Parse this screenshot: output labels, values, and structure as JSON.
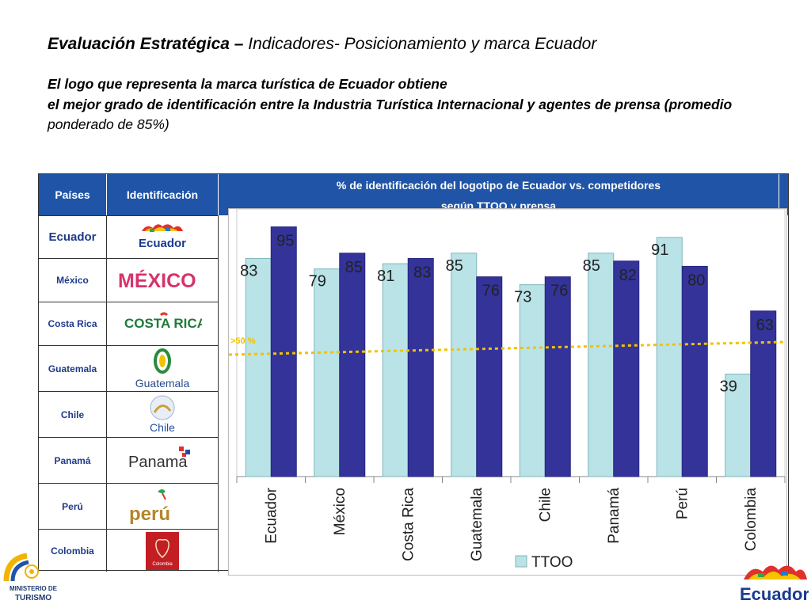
{
  "header": {
    "title_bold": "Evaluación Estratégica –",
    "title_rest": " Indicadores- Posicionamiento y marca Ecuador",
    "line1": "El logo que representa la marca turística de Ecuador obtiene",
    "line2": "el mejor grado de identificación entre la Industria Turística  Internacional  y agentes de prensa (promedio",
    "line3": "ponderado de 85%)"
  },
  "table": {
    "col_paises": "Países",
    "col_ident": "Identificación",
    "col_main_l1": "% de identificación del logotipo de Ecuador vs. competidores",
    "col_main_l2": "según TTOO y prensa",
    "rows": [
      {
        "country": "Ecuador",
        "logo_text": "Ecuador"
      },
      {
        "country": "México",
        "logo_text": "MÉXICO"
      },
      {
        "country": "Costa Rica",
        "logo_text": "COSTA RICA"
      },
      {
        "country": "Guatemala",
        "logo_text": "Guatemala"
      },
      {
        "country": "Chile",
        "logo_text": "Chile"
      },
      {
        "country": "Panamá",
        "logo_text": "Panama"
      },
      {
        "country": "Perú",
        "logo_text": "perú"
      },
      {
        "country": "Colombia",
        "logo_text": "Colombia"
      }
    ]
  },
  "chart_data": {
    "type": "bar",
    "categories": [
      "Ecuador",
      "México",
      "Costa Rica",
      "Guatemala",
      "Chile",
      "Panamá",
      "Perú",
      "Colombia"
    ],
    "series": [
      {
        "name": "TTOO",
        "values": [
          83,
          79,
          81,
          85,
          73,
          85,
          91,
          39
        ],
        "color": "#b9e3e6"
      },
      {
        "name": "",
        "values": [
          95,
          85,
          83,
          76,
          76,
          82,
          80,
          63
        ],
        "color": "#33339a"
      }
    ],
    "ylim": [
      0,
      100
    ],
    "threshold": {
      "value": 50,
      "label": ">50 %",
      "color": "#f2c200"
    },
    "legend": "bottom",
    "grid": false
  },
  "footer": {
    "ministerio": "MINISTERIO DE TURISMO",
    "brand": "Ecuador"
  }
}
